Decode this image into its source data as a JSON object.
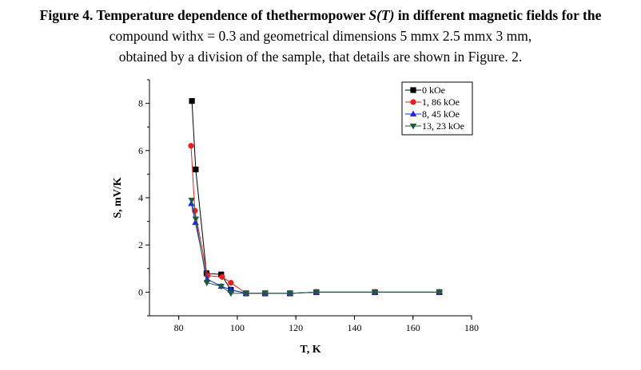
{
  "caption": {
    "line1": {
      "p1": "Figure 4. ",
      "p2": "Temperature dependence of the",
      "p3": "thermopower ",
      "p4": "S(T)",
      "p5": " in different magnetic fields for the"
    },
    "line2": "compound withx = 0.3 and geometrical dimensions 5 mmx 2.5 mmx 3 mm,",
    "line3": "obtained by a division of the sample, that details are shown in Figure. 2."
  },
  "chart_data": {
    "type": "line",
    "title": "",
    "xlabel": "T, K",
    "ylabel": "S, mV/K",
    "xlim": [
      70,
      180
    ],
    "ylim": [
      -1,
      9
    ],
    "xticks": [
      80,
      100,
      120,
      140,
      160,
      180
    ],
    "yticks": [
      0,
      2,
      4,
      6,
      8
    ],
    "grid": false,
    "legend_position": "top-right",
    "series": [
      {
        "name": "0 kOe",
        "marker": "square",
        "color": "#000000",
        "x": [
          84.5,
          85.8,
          89.5,
          94.5,
          97.8,
          103,
          109.5,
          118,
          127,
          147,
          169
        ],
        "y": [
          8.1,
          5.2,
          0.8,
          0.75,
          0.1,
          -0.05,
          -0.05,
          -0.05,
          0.0,
          0.0,
          0.0
        ]
      },
      {
        "name": "1, 86 kOe",
        "marker": "circle",
        "color": "#e8201c",
        "x": [
          84.2,
          85.5,
          89.8,
          94.8,
          97.8,
          103,
          109.5,
          118,
          127,
          147,
          169
        ],
        "y": [
          6.2,
          3.45,
          0.7,
          0.65,
          0.4,
          -0.05,
          -0.05,
          -0.05,
          0.0,
          0.0,
          0.0
        ]
      },
      {
        "name": "8, 45 kOe",
        "marker": "triangle-up",
        "color": "#1e2ad8",
        "x": [
          84.3,
          85.7,
          89.7,
          94.5,
          97.8,
          103,
          109.5,
          118,
          127,
          147,
          169
        ],
        "y": [
          3.75,
          2.95,
          0.55,
          0.25,
          0.1,
          -0.05,
          -0.05,
          -0.05,
          0.0,
          0.0,
          0.0
        ]
      },
      {
        "name": "13, 23 kOe",
        "marker": "triangle-down",
        "color": "#1a5e3a",
        "x": [
          84.4,
          85.8,
          89.6,
          94.5,
          97.8,
          103,
          109.5,
          118,
          127,
          147,
          169
        ],
        "y": [
          3.9,
          3.1,
          0.4,
          0.25,
          -0.05,
          -0.05,
          -0.05,
          -0.05,
          0.0,
          0.0,
          0.0
        ]
      }
    ]
  }
}
